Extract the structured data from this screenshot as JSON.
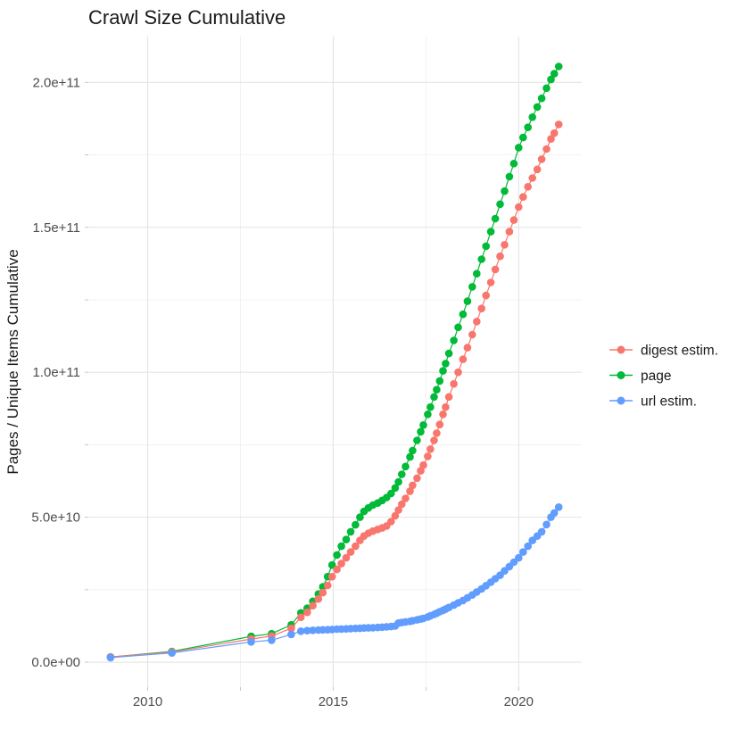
{
  "chart": {
    "title": "Crawl Size Cumulative",
    "y_axis_title": "Pages / Unique Items Cumulative",
    "background_color": "#FFFFFF",
    "grid_major_color": "#E4E4E4",
    "grid_minor_color": "#F0F0F0",
    "tick_mark_color": "#C6C6C6",
    "tick_label_color": "#4D4D4D",
    "text_color": "#1A1A1A"
  },
  "chart_data": {
    "type": "scatter",
    "title": "Crawl Size Cumulative",
    "xlabel": "",
    "ylabel": "Pages / Unique Items Cumulative",
    "legend_position": "right",
    "grid": true,
    "x_unit": "year",
    "value_unit": "items, in units of 1e9 (billions)",
    "xlim": [
      2008.4,
      2021.7
    ],
    "ylim_e9": [
      -8.6,
      215.8
    ],
    "x_ticks": [
      {
        "v": 2010,
        "label": "2010"
      },
      {
        "v": 2015,
        "label": "2015"
      },
      {
        "v": 2020,
        "label": "2020"
      }
    ],
    "x_minor_ticks": [
      2012.5,
      2017.5
    ],
    "y_ticks": [
      {
        "v_e9": 0,
        "label": "0.0e+00"
      },
      {
        "v_e9": 50,
        "label": "5.0e+10"
      },
      {
        "v_e9": 100,
        "label": "1.0e+11"
      },
      {
        "v_e9": 150,
        "label": "1.5e+11"
      },
      {
        "v_e9": 200,
        "label": "2.0e+11"
      }
    ],
    "y_minor_ticks_e9": [
      25,
      75,
      125,
      175
    ],
    "x": [
      2009.0,
      2010.65,
      2012.79,
      2013.34,
      2013.87,
      2014.13,
      2014.3,
      2014.45,
      2014.6,
      2014.72,
      2014.85,
      2014.97,
      2015.1,
      2015.22,
      2015.35,
      2015.47,
      2015.6,
      2015.72,
      2015.83,
      2015.95,
      2016.07,
      2016.2,
      2016.32,
      2016.44,
      2016.56,
      2016.67,
      2016.76,
      2016.85,
      2016.95,
      2017.07,
      2017.14,
      2017.26,
      2017.36,
      2017.43,
      2017.55,
      2017.62,
      2017.72,
      2017.79,
      2017.87,
      2017.96,
      2018.03,
      2018.12,
      2018.25,
      2018.37,
      2018.5,
      2018.62,
      2018.75,
      2018.87,
      2019.0,
      2019.12,
      2019.25,
      2019.37,
      2019.5,
      2019.62,
      2019.75,
      2019.87,
      2020.0,
      2020.12,
      2020.25,
      2020.37,
      2020.5,
      2020.62,
      2020.75,
      2020.87,
      2020.96,
      2021.08
    ],
    "series": [
      {
        "key": "digest-estim",
        "name": "digest estim.",
        "color": "#F8766D",
        "values_e9": [
          1.8,
          3.5,
          8.0,
          9.0,
          11.7,
          15.5,
          17.2,
          19.5,
          21.8,
          24.0,
          26.5,
          29.5,
          32.0,
          34.0,
          36.0,
          38.0,
          40.0,
          42.0,
          43.5,
          44.5,
          45.2,
          45.8,
          46.3,
          47.0,
          48.5,
          50.5,
          52.5,
          54.5,
          56.5,
          59.0,
          61.0,
          63.5,
          66.0,
          68.0,
          71.0,
          73.5,
          76.5,
          79.0,
          82.0,
          85.5,
          88.0,
          91.5,
          96.0,
          100.0,
          104.5,
          108.5,
          113.0,
          117.5,
          122.0,
          126.5,
          131.0,
          135.5,
          140.0,
          144.0,
          148.5,
          152.5,
          157.0,
          160.5,
          164.0,
          167.0,
          170.0,
          173.5,
          177.0,
          180.5,
          182.5,
          185.5
        ]
      },
      {
        "key": "page",
        "name": "page",
        "color": "#00BA38",
        "values_e9": [
          1.8,
          3.7,
          8.9,
          9.8,
          12.9,
          17.0,
          18.6,
          21.0,
          23.5,
          26.0,
          29.5,
          33.5,
          37.0,
          40.0,
          42.3,
          45.0,
          47.4,
          50.0,
          52.0,
          53.2,
          54.2,
          54.9,
          55.8,
          56.8,
          58.2,
          60.1,
          62.2,
          64.8,
          67.5,
          70.8,
          73.0,
          76.5,
          79.5,
          81.8,
          85.5,
          88.0,
          91.5,
          94.0,
          97.0,
          100.5,
          103.0,
          106.5,
          111.0,
          115.5,
          120.0,
          124.5,
          129.5,
          134.0,
          139.0,
          143.5,
          148.5,
          153.0,
          158.0,
          162.5,
          167.5,
          172.0,
          177.5,
          181.0,
          184.5,
          188.0,
          191.5,
          194.5,
          198.0,
          201.0,
          203.0,
          205.5
        ]
      },
      {
        "key": "url-estim",
        "name": "url estim.",
        "color": "#619CFF",
        "values_e9": [
          1.6,
          3.2,
          7.0,
          7.6,
          9.6,
          10.7,
          10.9,
          11.0,
          11.1,
          11.15,
          11.2,
          11.3,
          11.4,
          11.45,
          11.5,
          11.6,
          11.65,
          11.7,
          11.8,
          11.85,
          11.9,
          12.0,
          12.1,
          12.2,
          12.3,
          12.5,
          13.5,
          13.7,
          13.9,
          14.1,
          14.3,
          14.6,
          14.9,
          15.1,
          15.6,
          16.0,
          16.5,
          16.9,
          17.4,
          17.9,
          18.3,
          18.9,
          19.7,
          20.5,
          21.3,
          22.2,
          23.2,
          24.2,
          25.3,
          26.4,
          27.6,
          28.8,
          30.0,
          31.5,
          33.0,
          34.5,
          36.0,
          38.0,
          40.0,
          42.0,
          43.5,
          45.0,
          47.5,
          50.0,
          51.5,
          53.5
        ]
      }
    ],
    "render_order": [
      "page",
      "digest-estim",
      "url-estim"
    ],
    "point_radius": 4.3
  }
}
